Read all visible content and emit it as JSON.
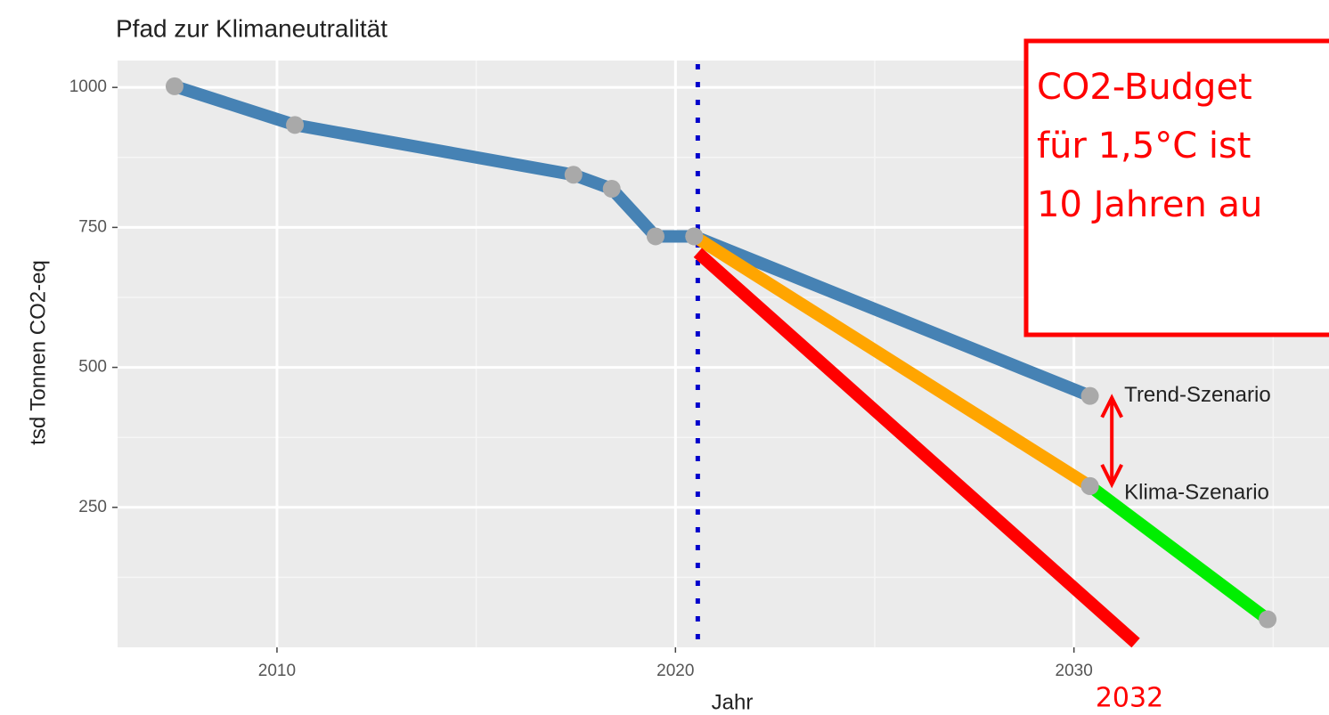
{
  "chart_data": {
    "type": "line",
    "title": "Pfad zur Klimaneutralität",
    "x_label": "Jahr",
    "y_label": "tsd Tonnen CO2-eq",
    "xlim": [
      2006,
      2036.4
    ],
    "ylim": [
      0,
      1048
    ],
    "xticks": [
      2010,
      2020,
      2030
    ],
    "yticks": [
      250,
      500,
      750,
      1000
    ],
    "x_minor_grid": [
      2015,
      2025,
      2035
    ],
    "y_minor_grid": [
      125,
      375,
      625,
      875
    ],
    "grid": true,
    "series": [
      {
        "color": "#4682b4",
        "markers": true,
        "x": [
          2007.43,
          2010.45,
          2017.44,
          2018.4,
          2019.5,
          2020.47,
          2030.4
        ],
        "values": [
          1002,
          933,
          844,
          819,
          734,
          734,
          449
        ]
      },
      {
        "color": "#ffa500",
        "markers": true,
        "x": [
          2020.47,
          2030.4
        ],
        "values": [
          734,
          288
        ]
      },
      {
        "color": "#00ee00",
        "markers": true,
        "x": [
          2030.4,
          2034.86
        ],
        "values": [
          288,
          50
        ]
      },
      {
        "color": "#ff0000",
        "markers": false,
        "x": [
          2020.56,
          2031.55
        ],
        "values": [
          705,
          8
        ]
      }
    ],
    "vline": {
      "x": 2020.56,
      "color": "#0000cc"
    },
    "annotations": [
      {
        "text": "Trend-Szenario",
        "x": 2030.95,
        "y": 449
      },
      {
        "text": "Klima-Szenario",
        "x": 2030.95,
        "y": 275
      }
    ],
    "arrow": {
      "x": 2030.95,
      "y": [
        449,
        288
      ],
      "color": "#ff0000"
    },
    "marked_year": {
      "text": "2032",
      "color": "#ff0000"
    },
    "callout": {
      "color": "#ff0000",
      "lines": [
        "CO2-Budget",
        "für 1,5°C ist",
        "10 Jahren au"
      ]
    }
  }
}
